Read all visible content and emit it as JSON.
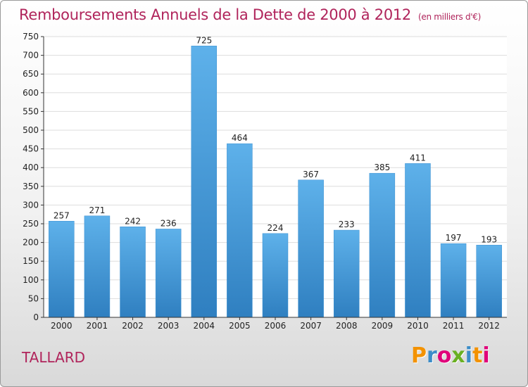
{
  "header": {
    "title": "Remboursements Annuels de la Dette de 2000 à 2012",
    "unit": "(en milliers d'€)"
  },
  "footer": {
    "place": "TALLARD",
    "logo": "Proxiti",
    "logo_colors": [
      "#f39200",
      "#3c8dc8",
      "#e0007a",
      "#6ab023",
      "#3c8dc8",
      "#f39200",
      "#e0007a"
    ]
  },
  "colors": {
    "bar_light": "#5eb1ea",
    "bar_dark": "#2f7fc0",
    "axis": "#333333",
    "grid": "#dddddd",
    "title": "#b0245b"
  },
  "chart_data": {
    "type": "bar",
    "title": "Remboursements Annuels de la Dette de 2000 à 2012",
    "unit": "(en milliers d'€)",
    "categories": [
      "2000",
      "2001",
      "2002",
      "2003",
      "2004",
      "2005",
      "2006",
      "2007",
      "2008",
      "2009",
      "2010",
      "2011",
      "2012"
    ],
    "values": [
      257,
      271,
      242,
      236,
      725,
      464,
      224,
      367,
      233,
      385,
      411,
      197,
      193
    ],
    "ylim": [
      0,
      750
    ],
    "yticks": [
      0,
      50,
      100,
      150,
      200,
      250,
      300,
      350,
      400,
      450,
      500,
      550,
      600,
      650,
      700,
      750
    ],
    "grid": true,
    "data_labels": true
  }
}
